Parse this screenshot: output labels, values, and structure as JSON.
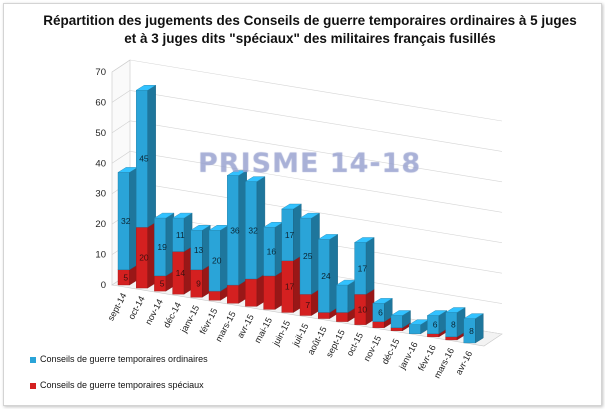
{
  "chart_data": {
    "type": "bar",
    "stacked": true,
    "three_d": true,
    "title": "Répartition des jugements des Conseils de guerre temporaires ordinaires à 5 juges et à 3 juges dits \"spéciaux\" des militaires français fusillés",
    "categories": [
      "sept-14",
      "oct-14",
      "nov-14",
      "déc-14",
      "janv-15",
      "févr-15",
      "mars-15",
      "avr-15",
      "mai-15",
      "juin-15",
      "juil-15",
      "août-15",
      "sept-15",
      "oct-15",
      "nov-15",
      "déc-15",
      "janv-16",
      "févr-16",
      "mars-16",
      "avr-16"
    ],
    "series": [
      {
        "name": "Conseils de guerre temporaires spéciaux",
        "color": "#d42020",
        "values": [
          5,
          20,
          5,
          14,
          9,
          3,
          6,
          9,
          11,
          17,
          7,
          2,
          3,
          10,
          2,
          1,
          0,
          1,
          1,
          0
        ],
        "labels": [
          "5",
          "20",
          "5",
          "14",
          "9",
          "",
          "",
          "",
          "",
          "17",
          "7",
          "",
          "",
          "10",
          "",
          "",
          "",
          "",
          "",
          ""
        ]
      },
      {
        "name": "Conseils de guerre temporaires ordinaires",
        "color": "#2aa4d8",
        "values": [
          32,
          45,
          19,
          11,
          13,
          20,
          36,
          32,
          16,
          17,
          25,
          24,
          9,
          17,
          6,
          4,
          3,
          6,
          8,
          8
        ],
        "labels": [
          "32",
          "45",
          "19",
          "11",
          "13",
          "20",
          "36",
          "32",
          "16",
          "17",
          "25",
          "24",
          "",
          "17",
          "6",
          "",
          "",
          "6",
          "8",
          "8"
        ]
      }
    ],
    "ylim": [
      0,
      70
    ],
    "yticks": [
      "0",
      "10",
      "20",
      "30",
      "40",
      "50",
      "60",
      "70"
    ],
    "grid": true,
    "legend_position": "bottom-left"
  },
  "watermark": "PRISME 14-18",
  "legend": {
    "ordinaires": "Conseils de guerre temporaires ordinaires",
    "speciaux": "Conseils de guerre temporaires spéciaux"
  }
}
